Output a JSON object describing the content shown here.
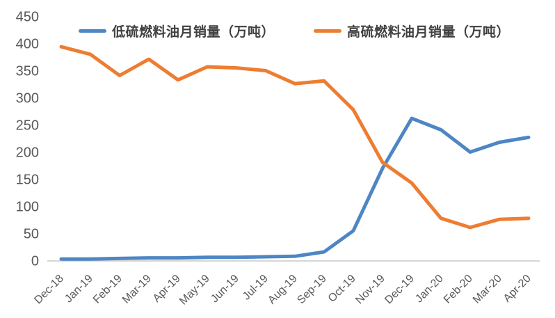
{
  "legend": {
    "items": [
      {
        "label": "低硫燃料油月销量（万吨）"
      },
      {
        "label": "高硫燃料油月销量（万吨）"
      }
    ]
  },
  "colors": {
    "low_sulfur_line": "#4E86C4",
    "high_sulfur_line": "#ED7D31",
    "axis_text": "#595959",
    "legend_text": "#404040",
    "axis_line": "#C9C9C9"
  },
  "chart_data": {
    "type": "line",
    "title": "",
    "xlabel": "",
    "ylabel": "",
    "categories": [
      "Dec-18",
      "Jan-19",
      "Feb-19",
      "Mar-19",
      "Apr-19",
      "May-19",
      "Jun-19",
      "Jul-19",
      "Aug-19",
      "Sep-19",
      "Oct-19",
      "Nov-19",
      "Dec-19",
      "Jan-20",
      "Feb-20",
      "Mar-20",
      "Apr-20"
    ],
    "series": [
      {
        "name": "低硫燃料油月销量（万吨）",
        "color": "#4E86C4",
        "values": [
          3,
          3,
          4,
          5,
          5,
          6,
          6,
          7,
          8,
          16,
          55,
          170,
          262,
          241,
          200,
          218,
          227
        ]
      },
      {
        "name": "高硫燃料油月销量（万吨）",
        "color": "#ED7D31",
        "values": [
          394,
          380,
          341,
          371,
          333,
          357,
          355,
          350,
          326,
          331,
          278,
          181,
          143,
          78,
          61,
          76,
          78
        ]
      }
    ],
    "ylim": [
      0,
      450
    ],
    "ytick_step": 50,
    "y_tick_labels": [
      "0",
      "50",
      "100",
      "150",
      "200",
      "250",
      "300",
      "350",
      "400",
      "450"
    ],
    "grid": false,
    "legend_position": "top"
  }
}
